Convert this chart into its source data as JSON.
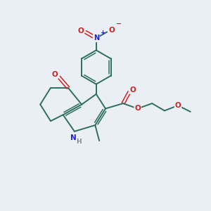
{
  "bg_color": "#eaeff5",
  "bond_color": "#2d6e5e",
  "atom_colors": {
    "N": "#2222cc",
    "O": "#cc2222",
    "H": "#888888"
  },
  "lw": 1.4,
  "lw_thin": 1.1
}
